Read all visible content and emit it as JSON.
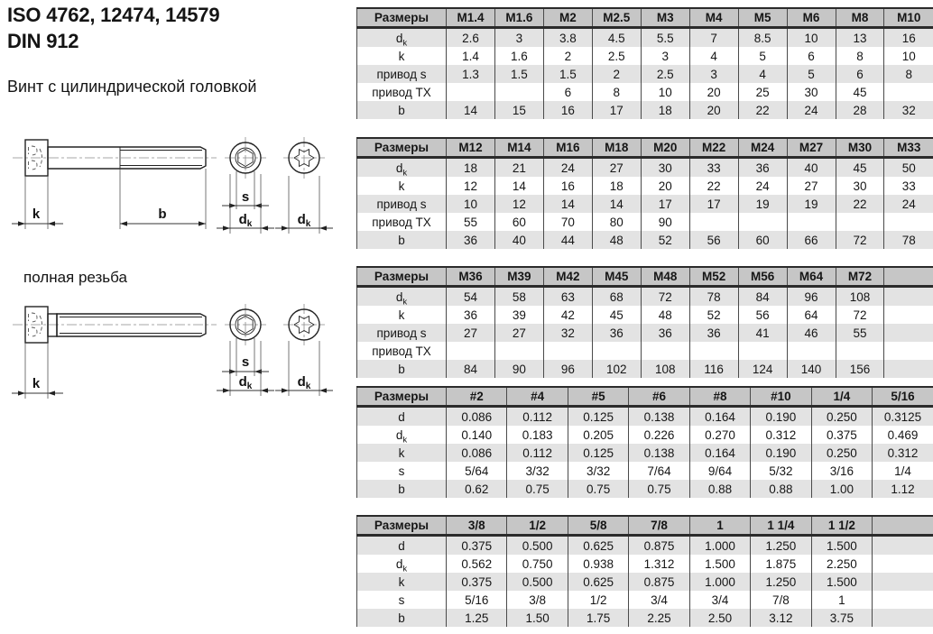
{
  "header": {
    "title_line1": "ISO 4762, 12474, 14579",
    "title_line2": "DIN 912",
    "subtitle": "Винт с цилиндрической головкой",
    "full_thread_label": "полная резьба"
  },
  "drawing_labels": {
    "k": "k",
    "b": "b",
    "s": "s",
    "d": "d",
    "dk_sub": "k"
  },
  "colors": {
    "header_bg": "#c6c6c6",
    "stripe_bg": "#e3e3e3",
    "grid": "#4a4a4a",
    "border": "#2b2b2b"
  },
  "tables": [
    {
      "columns": [
        "Размеры",
        "M1.4",
        "M1.6",
        "M2",
        "M2.5",
        "M3",
        "M4",
        "M5",
        "M6",
        "M8",
        "M10"
      ],
      "rows": [
        {
          "label": "d",
          "sub": "k",
          "values": [
            "2.6",
            "3",
            "3.8",
            "4.5",
            "5.5",
            "7",
            "8.5",
            "10",
            "13",
            "16"
          ]
        },
        {
          "label": "k",
          "values": [
            "1.4",
            "1.6",
            "2",
            "2.5",
            "3",
            "4",
            "5",
            "6",
            "8",
            "10"
          ]
        },
        {
          "label": "привод s",
          "values": [
            "1.3",
            "1.5",
            "1.5",
            "2",
            "2.5",
            "3",
            "4",
            "5",
            "6",
            "8"
          ]
        },
        {
          "label": "привод TX",
          "values": [
            "",
            "",
            "6",
            "8",
            "10",
            "20",
            "25",
            "30",
            "45",
            ""
          ]
        },
        {
          "label": "b",
          "values": [
            "14",
            "15",
            "16",
            "17",
            "18",
            "20",
            "22",
            "24",
            "28",
            "32"
          ]
        }
      ]
    },
    {
      "columns": [
        "Размеры",
        "M12",
        "M14",
        "M16",
        "M18",
        "M20",
        "M22",
        "M24",
        "M27",
        "M30",
        "M33"
      ],
      "rows": [
        {
          "label": "d",
          "sub": "k",
          "values": [
            "18",
            "21",
            "24",
            "27",
            "30",
            "33",
            "36",
            "40",
            "45",
            "50"
          ]
        },
        {
          "label": "k",
          "values": [
            "12",
            "14",
            "16",
            "18",
            "20",
            "22",
            "24",
            "27",
            "30",
            "33"
          ]
        },
        {
          "label": "привод s",
          "values": [
            "10",
            "12",
            "14",
            "14",
            "17",
            "17",
            "19",
            "19",
            "22",
            "24"
          ]
        },
        {
          "label": "привод TX",
          "values": [
            "55",
            "60",
            "70",
            "80",
            "90",
            "",
            "",
            "",
            "",
            ""
          ]
        },
        {
          "label": "b",
          "values": [
            "36",
            "40",
            "44",
            "48",
            "52",
            "56",
            "60",
            "66",
            "72",
            "78"
          ]
        }
      ]
    },
    {
      "columns": [
        "Размеры",
        "M36",
        "M39",
        "M42",
        "M45",
        "M48",
        "M52",
        "M56",
        "M64",
        "M72",
        ""
      ],
      "rows": [
        {
          "label": "d",
          "sub": "k",
          "values": [
            "54",
            "58",
            "63",
            "68",
            "72",
            "78",
            "84",
            "96",
            "108",
            ""
          ]
        },
        {
          "label": "k",
          "values": [
            "36",
            "39",
            "42",
            "45",
            "48",
            "52",
            "56",
            "64",
            "72",
            ""
          ]
        },
        {
          "label": "привод s",
          "values": [
            "27",
            "27",
            "32",
            "36",
            "36",
            "36",
            "41",
            "46",
            "55",
            ""
          ]
        },
        {
          "label": "привод TX",
          "values": [
            "",
            "",
            "",
            "",
            "",
            "",
            "",
            "",
            "",
            ""
          ]
        },
        {
          "label": "b",
          "values": [
            "84",
            "90",
            "96",
            "102",
            "108",
            "116",
            "124",
            "140",
            "156",
            ""
          ]
        }
      ]
    },
    {
      "columns": [
        "Размеры",
        "#2",
        "#4",
        "#5",
        "#6",
        "#8",
        "#10",
        "1/4",
        "5/16"
      ],
      "rows": [
        {
          "label": "d",
          "values": [
            "0.086",
            "0.112",
            "0.125",
            "0.138",
            "0.164",
            "0.190",
            "0.250",
            "0.3125"
          ]
        },
        {
          "label": "d",
          "sub": "k",
          "values": [
            "0.140",
            "0.183",
            "0.205",
            "0.226",
            "0.270",
            "0.312",
            "0.375",
            "0.469"
          ]
        },
        {
          "label": "k",
          "values": [
            "0.086",
            "0.112",
            "0.125",
            "0.138",
            "0.164",
            "0.190",
            "0.250",
            "0.312"
          ]
        },
        {
          "label": "s",
          "values": [
            "5/64",
            "3/32",
            "3/32",
            "7/64",
            "9/64",
            "5/32",
            "3/16",
            "1/4"
          ]
        },
        {
          "label": "b",
          "values": [
            "0.62",
            "0.75",
            "0.75",
            "0.75",
            "0.88",
            "0.88",
            "1.00",
            "1.12"
          ]
        }
      ]
    },
    {
      "columns": [
        "Размеры",
        "3/8",
        "1/2",
        "5/8",
        "7/8",
        "1",
        "1 1/4",
        "1 1/2",
        ""
      ],
      "rows": [
        {
          "label": "d",
          "values": [
            "0.375",
            "0.500",
            "0.625",
            "0.875",
            "1.000",
            "1.250",
            "1.500",
            ""
          ]
        },
        {
          "label": "d",
          "sub": "k",
          "values": [
            "0.562",
            "0.750",
            "0.938",
            "1.312",
            "1.500",
            "1.875",
            "2.250",
            ""
          ]
        },
        {
          "label": "k",
          "values": [
            "0.375",
            "0.500",
            "0.625",
            "0.875",
            "1.000",
            "1.250",
            "1.500",
            ""
          ]
        },
        {
          "label": "s",
          "values": [
            "5/16",
            "3/8",
            "1/2",
            "3/4",
            "3/4",
            "7/8",
            "1",
            ""
          ]
        },
        {
          "label": "b",
          "values": [
            "1.25",
            "1.50",
            "1.75",
            "2.25",
            "2.50",
            "3.12",
            "3.75",
            ""
          ]
        }
      ]
    }
  ]
}
